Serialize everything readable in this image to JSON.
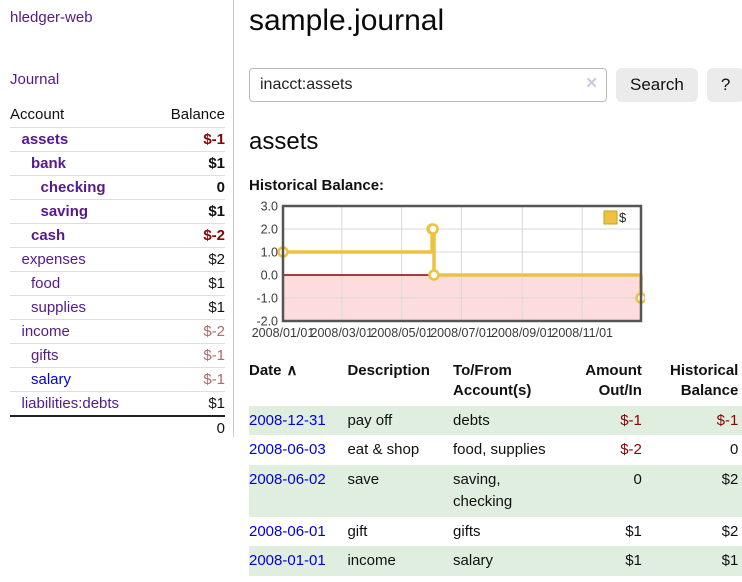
{
  "colors": {
    "purple": "#551a8b",
    "link_blue": "#0000dd",
    "negative_red": "#8b0000",
    "negative_muted": "#b06a6a",
    "row_green": "#dfeedf",
    "chart_gold": "#edc240",
    "chart_gold_border": "#c9a21c",
    "chart_negative_region": "#fcdcdc",
    "chart_zero_line": "#8b0000",
    "chart_grid": "#d9d9d9",
    "chart_border": "#555555"
  },
  "sidebar": {
    "brand": "hledger-web",
    "nav_journal": "Journal",
    "accounts_header": {
      "account": "Account",
      "balance": "Balance"
    },
    "accounts": [
      {
        "name": "assets",
        "indent": 1,
        "bold": true,
        "balance": "$-1",
        "balance_style": "neg-strong"
      },
      {
        "name": "bank",
        "indent": 2,
        "bold": true,
        "balance": "$1",
        "balance_style": "pos"
      },
      {
        "name": "checking",
        "indent": 3,
        "bold": true,
        "balance": "0",
        "balance_style": "pos"
      },
      {
        "name": "saving",
        "indent": 3,
        "bold": true,
        "balance": "$1",
        "balance_style": "pos"
      },
      {
        "name": "cash",
        "indent": 2,
        "bold": true,
        "balance": "$-2",
        "balance_style": "neg-strong"
      },
      {
        "name": "expenses",
        "indent": 1,
        "bold": false,
        "balance": "$2",
        "balance_style": "pos"
      },
      {
        "name": "food",
        "indent": 2,
        "bold": false,
        "balance": "$1",
        "balance_style": "pos"
      },
      {
        "name": "supplies",
        "indent": 2,
        "bold": false,
        "balance": "$1",
        "balance_style": "pos"
      },
      {
        "name": "income",
        "indent": 1,
        "bold": false,
        "balance": "$-2",
        "balance_style": "neg-muted"
      },
      {
        "name": "gifts",
        "indent": 2,
        "bold": false,
        "balance": "$-1",
        "balance_style": "neg-muted"
      },
      {
        "name": "salary",
        "indent": 2,
        "bold": false,
        "balance": "$-1",
        "balance_style": "neg-muted",
        "link_blue": true
      },
      {
        "name": "liabilities:debts",
        "indent": 1,
        "bold": false,
        "balance": "$1",
        "balance_style": "pos"
      }
    ],
    "total": "0"
  },
  "header": {
    "title": "sample.journal"
  },
  "search": {
    "value": "inacct:assets",
    "clear_icon": "✕",
    "button_label": "Search",
    "help_label": "?"
  },
  "account_page": {
    "title": "assets",
    "chart_label": "Historical Balance:"
  },
  "chart_data": {
    "type": "line",
    "step": true,
    "title": "Historical Balance:",
    "x_range": [
      "2008-01-01",
      "2008-12-31"
    ],
    "ylim": [
      -2,
      3
    ],
    "y_ticks": [
      3,
      2,
      1,
      0,
      -1,
      -2
    ],
    "x_ticks": [
      {
        "date": "2008-01-01",
        "label": "2008/01/01"
      },
      {
        "date": "2008-03-01",
        "label": "2008/03/01"
      },
      {
        "date": "2008-05-01",
        "label": "2008/05/01"
      },
      {
        "date": "2008-07-01",
        "label": "2008/07/01"
      },
      {
        "date": "2008-09-01",
        "label": "2008/09/01"
      },
      {
        "date": "2008-11-01",
        "label": "2008/11/01"
      }
    ],
    "series": [
      {
        "name": "$",
        "points": [
          [
            "2008-01-01",
            1
          ],
          [
            "2008-06-01",
            2
          ],
          [
            "2008-06-02",
            2
          ],
          [
            "2008-06-03",
            0
          ],
          [
            "2008-12-31",
            -1
          ]
        ]
      }
    ],
    "legend": {
      "position": "top-right",
      "label": "$"
    },
    "grid": true
  },
  "register": {
    "columns": {
      "date": "Date",
      "sort_icon": "∧",
      "description": "Description",
      "accounts": "To/From Account(s)",
      "amount": "Amount Out/In",
      "balance": "Historical Balance"
    },
    "rows": [
      {
        "date": "2008-12-31",
        "description": "pay off",
        "accounts": "debts",
        "amount": "$-1",
        "amount_neg": true,
        "balance": "$-1",
        "balance_neg": true
      },
      {
        "date": "2008-06-03",
        "description": "eat & shop",
        "accounts": "food, supplies",
        "amount": "$-2",
        "amount_neg": true,
        "balance": "0",
        "balance_neg": false
      },
      {
        "date": "2008-06-02",
        "description": "save",
        "accounts": "saving, checking",
        "amount": "0",
        "amount_neg": false,
        "balance": "$2",
        "balance_neg": false
      },
      {
        "date": "2008-06-01",
        "description": "gift",
        "accounts": "gifts",
        "amount": "$1",
        "amount_neg": false,
        "balance": "$2",
        "balance_neg": false
      },
      {
        "date": "2008-01-01",
        "description": "income",
        "accounts": "salary",
        "amount": "$1",
        "amount_neg": false,
        "balance": "$1",
        "balance_neg": false
      }
    ]
  }
}
